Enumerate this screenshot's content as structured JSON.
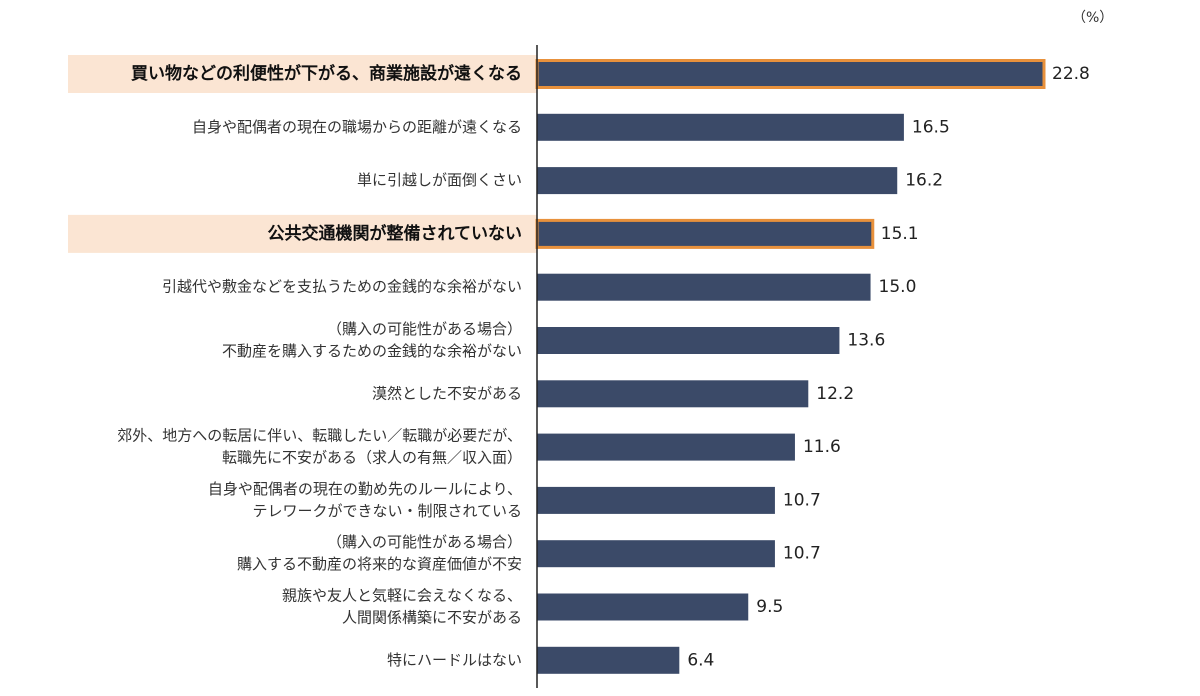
{
  "chart_data": {
    "type": "bar",
    "orientation": "horizontal",
    "unit_label": "（%）",
    "xlim": [
      0,
      25
    ],
    "grid": false,
    "bar_color": "#3b4a68",
    "highlight_bg": "#fbe5d3",
    "highlight_border": "#e8913c",
    "categories": [
      {
        "lines": [
          "買い物などの利便性が下がる、商業施設が遠くなる"
        ],
        "highlight": true
      },
      {
        "lines": [
          "自身や配偶者の現在の職場からの距離が遠くなる"
        ],
        "highlight": false
      },
      {
        "lines": [
          "単に引越しが面倒くさい"
        ],
        "highlight": false
      },
      {
        "lines": [
          "公共交通機関が整備されていない"
        ],
        "highlight": true
      },
      {
        "lines": [
          "引越代や敷金などを支払うための金銭的な余裕がない"
        ],
        "highlight": false
      },
      {
        "lines": [
          "（購入の可能性がある場合）",
          "不動産を購入するための金銭的な余裕がない"
        ],
        "highlight": false
      },
      {
        "lines": [
          "漠然とした不安がある"
        ],
        "highlight": false
      },
      {
        "lines": [
          "郊外、地方への転居に伴い、転職したい／転職が必要だが、",
          "転職先に不安がある（求人の有無／収入面）"
        ],
        "highlight": false
      },
      {
        "lines": [
          "自身や配偶者の現在の勤め先のルールにより、",
          "テレワークができない・制限されている"
        ],
        "highlight": false
      },
      {
        "lines": [
          "（購入の可能性がある場合）",
          "購入する不動産の将来的な資産価値が不安"
        ],
        "highlight": false
      },
      {
        "lines": [
          "親族や友人と気軽に会えなくなる、",
          "人間関係構築に不安がある"
        ],
        "highlight": false
      },
      {
        "lines": [
          "特にハードルはない"
        ],
        "highlight": false
      }
    ],
    "values": [
      22.8,
      16.5,
      16.2,
      15.1,
      15.0,
      13.6,
      12.2,
      11.6,
      10.7,
      10.7,
      9.5,
      6.4
    ],
    "value_labels": [
      "22.8",
      "16.5",
      "16.2",
      "15.1",
      "15.0",
      "13.6",
      "12.2",
      "11.6",
      "10.7",
      "10.7",
      "9.5",
      "6.4"
    ]
  }
}
